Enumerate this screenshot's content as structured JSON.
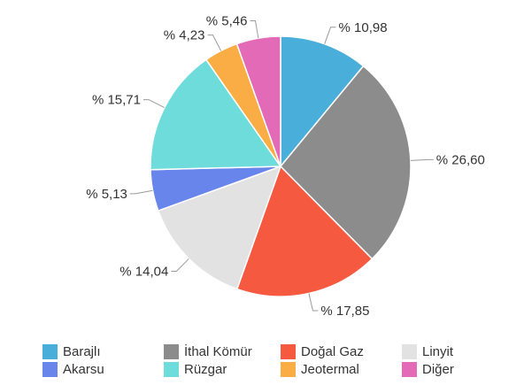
{
  "chart_data": {
    "type": "pie",
    "title": "",
    "start_angle": 0,
    "direction": "clockwise",
    "legend_position": "bottom",
    "slices": [
      {
        "name": "Barajlı",
        "value": 10.98,
        "label": "% 10,98",
        "color": "#4aaedb"
      },
      {
        "name": "İthal Kömür",
        "value": 26.6,
        "label": "% 26,60",
        "color": "#8c8c8c"
      },
      {
        "name": "Doğal Gaz",
        "value": 17.85,
        "label": "% 17,85",
        "color": "#f55a41"
      },
      {
        "name": "Linyit",
        "value": 14.04,
        "label": "% 14,04",
        "color": "#e2e2e2"
      },
      {
        "name": "Akarsu",
        "value": 5.13,
        "label": "% 5,13",
        "color": "#6785ea"
      },
      {
        "name": "Rüzgar",
        "value": 15.71,
        "label": "% 15,71",
        "color": "#6fdcdc"
      },
      {
        "name": "Jeotermal",
        "value": 4.23,
        "label": "% 4,23",
        "color": "#fbad45"
      },
      {
        "name": "Diğer",
        "value": 5.46,
        "label": "% 5,46",
        "color": "#e36ab6"
      }
    ]
  }
}
